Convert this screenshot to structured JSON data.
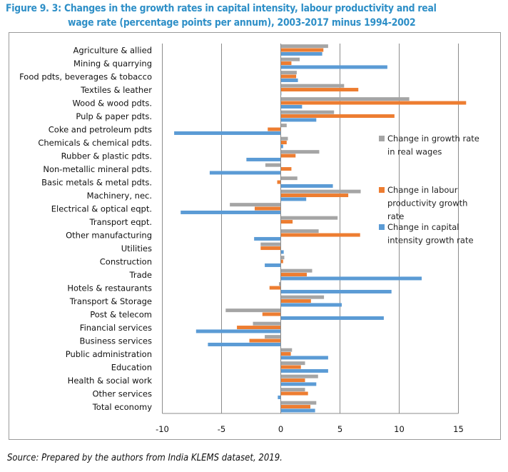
{
  "figure": {
    "title_line1": "Figure 9. 3: Changes in the growth rates in capital intensity, labour productivity and real",
    "title_line2": "wage rate (percentage points per annum), 2003-2017 minus 1994-2002",
    "source": "Source: Prepared by the authors from India KLEMS dataset, 2019."
  },
  "colors": {
    "real_wages": "#A5A5A5",
    "labour_productivity": "#ED7D31",
    "capital_intensity": "#5B9BD5",
    "title": "#2E8FC7",
    "gridline": "#8c8c8c"
  },
  "chart_data": {
    "type": "bar",
    "orientation": "horizontal",
    "title": "Changes in the growth rates in capital intensity, labour productivity and real wage rate (percentage points per annum), 2003-2017 minus 1994-2002",
    "xlabel": "",
    "ylabel": "",
    "xlim": [
      -10,
      15
    ],
    "xticks": [
      -10,
      -5,
      0,
      5,
      10,
      15
    ],
    "xtick_labels": [
      "-10",
      "-5",
      "0",
      "5",
      "10",
      "15"
    ],
    "grid": "vertical",
    "legend_position": "right",
    "categories": [
      "Agriculture & allied",
      "Mining & quarrying",
      "Food pdts, beverages & tobacco",
      "Textiles & leather",
      "Wood & wood pdts.",
      "Pulp & paper pdts.",
      "Coke and petroleum pdts",
      "Chemicals & chemical pdts.",
      "Rubber & plastic pdts.",
      "Non-metallic mineral pdts.",
      "Basic metals & metal pdts.",
      "Machinery, nec.",
      "Electrical & optical eqpt.",
      "Transport eqpt.",
      "Other manufacturing",
      "Utilities",
      "Construction",
      "Trade",
      "Hotels & restaurants",
      "Transport & Storage",
      "Post & telecom",
      "Financial services",
      "Business services",
      "Public administration",
      "Education",
      "Health & social work",
      "Other services",
      "Total economy"
    ],
    "series": [
      {
        "key": "real_wages",
        "name": "Change in growth rate in real wages",
        "legend_lines": [
          "Change in growth rate",
          "in real wages"
        ],
        "values": [
          4.0,
          1.6,
          1.35,
          5.35,
          10.85,
          4.5,
          0.5,
          0.6,
          3.25,
          -1.3,
          1.4,
          6.75,
          -4.3,
          4.8,
          3.2,
          -1.7,
          0.3,
          2.65,
          -0.15,
          3.65,
          -4.65,
          -2.35,
          -1.35,
          0.95,
          2.05,
          3.15,
          2.05,
          3.0
        ]
      },
      {
        "key": "labour_productivity",
        "name": "Change in labour productivity growth rate",
        "legend_lines": [
          "Change in labour",
          "productivity growth",
          "rate"
        ],
        "values": [
          3.6,
          0.9,
          1.3,
          6.55,
          15.65,
          9.6,
          -1.1,
          0.5,
          1.25,
          0.9,
          -0.3,
          5.7,
          -2.2,
          1.0,
          6.7,
          -1.7,
          0.2,
          2.2,
          -0.95,
          2.55,
          -1.55,
          -3.7,
          -2.65,
          0.85,
          1.7,
          2.05,
          2.3,
          2.5
        ]
      },
      {
        "key": "capital_intensity",
        "name": "Change in capital intensity growth rate",
        "legend_lines": [
          "Change in capital",
          "intensity growth rate"
        ],
        "values": [
          3.5,
          9.0,
          1.45,
          0.05,
          1.8,
          3.0,
          -9.0,
          0.2,
          -2.9,
          -6.0,
          4.4,
          2.15,
          -8.45,
          0.0,
          -2.25,
          0.25,
          -1.35,
          11.9,
          9.35,
          5.15,
          8.7,
          -7.15,
          -6.15,
          4.0,
          4.0,
          3.0,
          -0.25,
          2.9
        ]
      }
    ]
  }
}
